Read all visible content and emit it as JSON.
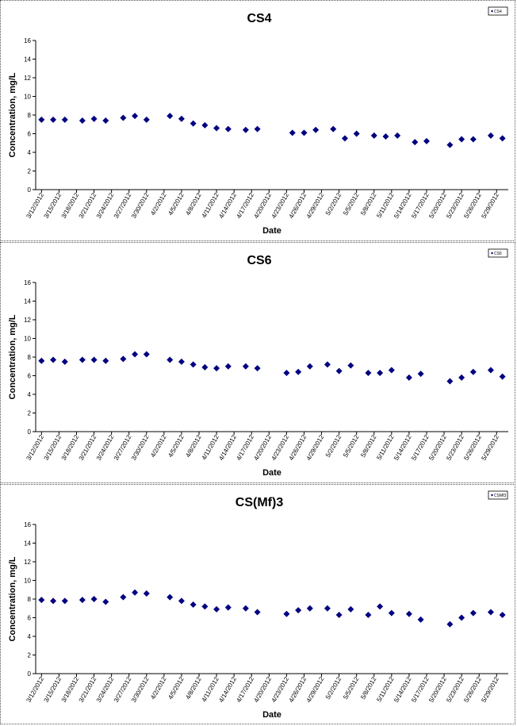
{
  "colors": {
    "marker": "#000080",
    "axis": "#000000",
    "frame": "#555555"
  },
  "chart_data": [
    {
      "type": "scatter",
      "title": "CS4",
      "xlabel": "Date",
      "ylabel": "Concentration, mg/L",
      "ylim": [
        0,
        16
      ],
      "yticks": [
        0,
        2,
        4,
        6,
        8,
        10,
        12,
        14,
        16
      ],
      "grid": false,
      "legend_position": "top-right",
      "x_tick_labels": [
        "3/12/2012",
        "3/15/2012",
        "3/18/2012",
        "3/21/2012",
        "3/24/2012",
        "3/27/2012",
        "3/30/2012",
        "4/2/2012",
        "4/5/2012",
        "4/8/2012",
        "4/11/2012",
        "4/14/2012",
        "4/17/2012",
        "4/20/2012",
        "4/23/2012",
        "4/26/2012",
        "4/29/2012",
        "5/2/2012",
        "5/5/2012",
        "5/8/2012",
        "5/11/2012",
        "5/14/2012",
        "5/17/2012",
        "5/20/2012",
        "5/23/2012",
        "5/26/2012",
        "5/29/2012"
      ],
      "series": [
        {
          "name": "CS4",
          "x": [
            "3/12/2012",
            "3/14/2012",
            "3/16/2012",
            "3/19/2012",
            "3/21/2012",
            "3/23/2012",
            "3/26/2012",
            "3/28/2012",
            "3/30/2012",
            "4/3/2012",
            "4/5/2012",
            "4/7/2012",
            "4/9/2012",
            "4/11/2012",
            "4/13/2012",
            "4/16/2012",
            "4/18/2012",
            "4/24/2012",
            "4/26/2012",
            "4/28/2012",
            "5/1/2012",
            "5/3/2012",
            "5/5/2012",
            "5/8/2012",
            "5/10/2012",
            "5/12/2012",
            "5/15/2012",
            "5/17/2012",
            "5/21/2012",
            "5/23/2012",
            "5/25/2012",
            "5/28/2012",
            "5/30/2012"
          ],
          "values": [
            7.5,
            7.5,
            7.5,
            7.4,
            7.6,
            7.4,
            7.7,
            7.9,
            7.5,
            7.9,
            7.6,
            7.1,
            6.9,
            6.6,
            6.5,
            6.4,
            6.5,
            6.1,
            6.1,
            6.4,
            6.5,
            5.5,
            6.0,
            5.8,
            5.7,
            5.8,
            5.1,
            5.2,
            4.8,
            5.4,
            5.4,
            5.8,
            5.5
          ]
        }
      ]
    },
    {
      "type": "scatter",
      "title": "CS6",
      "xlabel": "Date",
      "ylabel": "Concentration, mg/L",
      "ylim": [
        0,
        16
      ],
      "yticks": [
        0,
        2,
        4,
        6,
        8,
        10,
        12,
        14,
        16
      ],
      "grid": false,
      "legend_position": "top-right",
      "x_tick_labels": [
        "3/12/2012",
        "3/15/2012",
        "3/18/2012",
        "3/21/2012",
        "3/24/2012",
        "3/27/2012",
        "3/30/2012",
        "4/2/2012",
        "4/5/2012",
        "4/8/2012",
        "4/11/2012",
        "4/14/2012",
        "4/17/2012",
        "4/20/2012",
        "4/23/2012",
        "4/26/2012",
        "4/29/2012",
        "5/2/2012",
        "5/5/2012",
        "5/8/2012",
        "5/11/2012",
        "5/14/2012",
        "5/17/2012",
        "5/20/2012",
        "5/23/2012",
        "5/26/2012",
        "5/29/2012"
      ],
      "series": [
        {
          "name": "CS6",
          "x": [
            "3/12/2012",
            "3/14/2012",
            "3/16/2012",
            "3/19/2012",
            "3/21/2012",
            "3/23/2012",
            "3/26/2012",
            "3/28/2012",
            "3/30/2012",
            "4/3/2012",
            "4/5/2012",
            "4/7/2012",
            "4/9/2012",
            "4/11/2012",
            "4/13/2012",
            "4/16/2012",
            "4/18/2012",
            "4/23/2012",
            "4/25/2012",
            "4/27/2012",
            "4/30/2012",
            "5/2/2012",
            "5/4/2012",
            "5/7/2012",
            "5/9/2012",
            "5/11/2012",
            "5/14/2012",
            "5/16/2012",
            "5/21/2012",
            "5/23/2012",
            "5/25/2012",
            "5/28/2012",
            "5/30/2012"
          ],
          "values": [
            7.6,
            7.7,
            7.5,
            7.7,
            7.7,
            7.6,
            7.8,
            8.3,
            8.3,
            7.7,
            7.5,
            7.2,
            6.9,
            6.8,
            7.0,
            7.0,
            6.8,
            6.3,
            6.4,
            7.0,
            7.2,
            6.5,
            7.1,
            6.3,
            6.3,
            6.6,
            5.8,
            6.2,
            5.4,
            5.8,
            6.4,
            6.6,
            5.9
          ]
        }
      ]
    },
    {
      "type": "scatter",
      "title": "CS(Mf)3",
      "xlabel": "Date",
      "ylabel": "Concentration, mg/L",
      "ylim": [
        0,
        16
      ],
      "yticks": [
        0,
        2,
        4,
        6,
        8,
        10,
        12,
        14,
        16
      ],
      "grid": false,
      "legend_position": "top-right",
      "x_tick_labels": [
        "3/12/2012",
        "3/15/2012",
        "3/18/2012",
        "3/21/2012",
        "3/24/2012",
        "3/27/2012",
        "3/30/2012",
        "4/2/2012",
        "4/5/2012",
        "4/8/2012",
        "4/11/2012",
        "4/14/2012",
        "4/17/2012",
        "4/20/2012",
        "4/23/2012",
        "4/26/2012",
        "4/29/2012",
        "5/2/2012",
        "5/5/2012",
        "5/8/2012",
        "5/11/2012",
        "5/14/2012",
        "5/17/2012",
        "5/20/2012",
        "5/23/2012",
        "5/26/2012",
        "5/29/2012"
      ],
      "series": [
        {
          "name": "CSMf3",
          "x": [
            "3/12/2012",
            "3/14/2012",
            "3/16/2012",
            "3/19/2012",
            "3/21/2012",
            "3/23/2012",
            "3/26/2012",
            "3/28/2012",
            "3/30/2012",
            "4/3/2012",
            "4/5/2012",
            "4/7/2012",
            "4/9/2012",
            "4/11/2012",
            "4/13/2012",
            "4/16/2012",
            "4/18/2012",
            "4/23/2012",
            "4/25/2012",
            "4/27/2012",
            "4/30/2012",
            "5/2/2012",
            "5/4/2012",
            "5/7/2012",
            "5/9/2012",
            "5/11/2012",
            "5/14/2012",
            "5/16/2012",
            "5/21/2012",
            "5/23/2012",
            "5/25/2012",
            "5/28/2012",
            "5/30/2012"
          ],
          "values": [
            7.9,
            7.8,
            7.8,
            7.9,
            8.0,
            7.7,
            8.2,
            8.7,
            8.6,
            8.2,
            7.8,
            7.4,
            7.2,
            6.9,
            7.1,
            7.0,
            6.6,
            6.4,
            6.8,
            7.0,
            7.0,
            6.3,
            6.9,
            6.3,
            7.2,
            6.5,
            6.4,
            5.8,
            5.3,
            6.0,
            6.5,
            6.6,
            6.3
          ]
        }
      ]
    }
  ]
}
